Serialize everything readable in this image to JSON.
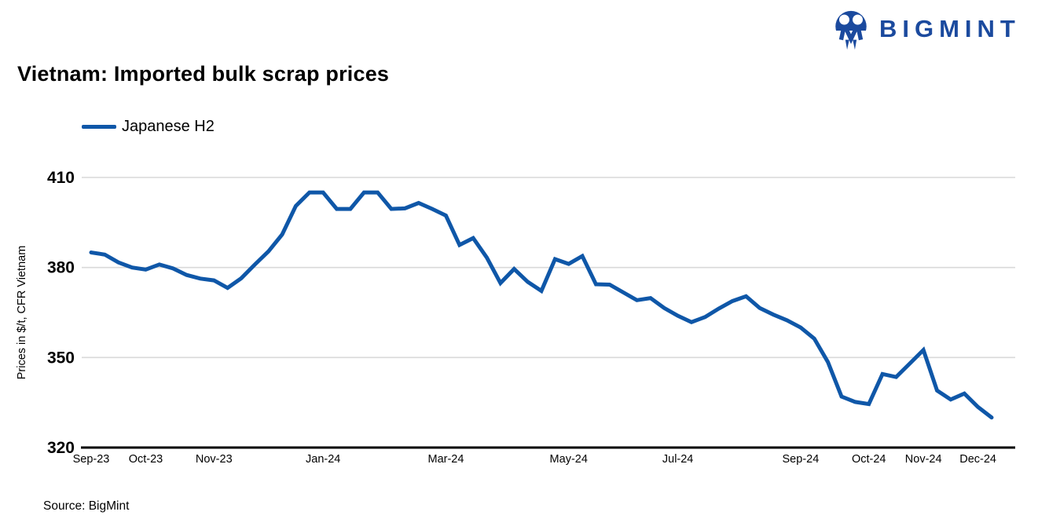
{
  "brand": {
    "name": "BIGMINT",
    "color": "#1b4a9e"
  },
  "title": "Vietnam: Imported bulk scrap prices",
  "legend": [
    {
      "label": "Japanese H2",
      "color": "#0f57a8"
    }
  ],
  "source": "Source: BigMint",
  "colors": {
    "gridline": "#d9d9d9",
    "axis": "#000000",
    "line": "#0f57a8"
  },
  "chart_data": {
    "type": "line",
    "title": "Vietnam: Imported bulk scrap prices",
    "xlabel": "",
    "ylabel": "Prices in $/t, CFR Vietnam",
    "ylim": [
      320,
      410
    ],
    "yticks": [
      320,
      350,
      380,
      410
    ],
    "grid": "horizontal-light-gray",
    "legend_position": "top-left",
    "x_frequency": "weekly",
    "xticks": [
      {
        "label": "Sep-23",
        "index": 0
      },
      {
        "label": "Oct-23",
        "index": 4
      },
      {
        "label": "Nov-23",
        "index": 9
      },
      {
        "label": "Jan-24",
        "index": 17
      },
      {
        "label": "Mar-24",
        "index": 26
      },
      {
        "label": "May-24",
        "index": 35
      },
      {
        "label": "Jul-24",
        "index": 43
      },
      {
        "label": "Sep-24",
        "index": 52
      },
      {
        "label": "Oct-24",
        "index": 57
      },
      {
        "label": "Nov-24",
        "index": 61
      },
      {
        "label": "Dec-24",
        "index": 65
      }
    ],
    "series": [
      {
        "name": "Japanese H2",
        "color": "#0f57a8",
        "values": [
          385,
          384.3,
          381.7,
          380,
          379.3,
          381,
          379.7,
          377.5,
          376.3,
          375.7,
          373.2,
          376.4,
          381,
          385.4,
          391,
          400.5,
          405,
          405,
          399.5,
          399.5,
          405,
          405,
          399.5,
          399.7,
          401.5,
          399.5,
          397.3,
          387.5,
          389.8,
          383.3,
          374.8,
          379.5,
          375.2,
          372.2,
          382.8,
          381.2,
          383.8,
          374.4,
          374.3,
          371.7,
          369.1,
          369.8,
          366.5,
          363.9,
          361.8,
          363.5,
          366.3,
          368.8,
          370.4,
          366.5,
          364.3,
          362.4,
          360,
          356.3,
          348.5,
          337,
          335.2,
          334.5,
          344.5,
          343.5,
          348,
          352.5,
          339,
          336,
          338,
          333.5,
          330
        ]
      }
    ]
  }
}
